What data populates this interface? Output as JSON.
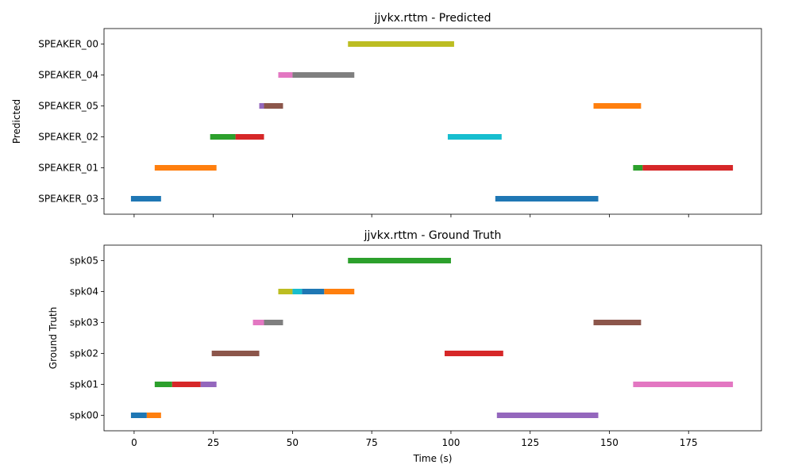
{
  "chart_data": [
    {
      "type": "timeline",
      "title": "jjvkx.rttm - Predicted",
      "ylabel": "Predicted",
      "xlabel": "",
      "xlim": [
        -9.5,
        198
      ],
      "xticks": [
        0,
        25,
        50,
        75,
        100,
        125,
        150,
        175
      ],
      "show_xtick_labels": false,
      "grid": false,
      "categories": [
        "SPEAKER_03",
        "SPEAKER_01",
        "SPEAKER_02",
        "SPEAKER_05",
        "SPEAKER_04",
        "SPEAKER_00"
      ],
      "segments": [
        {
          "row": "SPEAKER_03",
          "start": -1,
          "end": 8.5,
          "color": "#1f77b4"
        },
        {
          "row": "SPEAKER_01",
          "start": 6.5,
          "end": 26,
          "color": "#ff7f0e"
        },
        {
          "row": "SPEAKER_02",
          "start": 24,
          "end": 32,
          "color": "#2ca02c"
        },
        {
          "row": "SPEAKER_02",
          "start": 32,
          "end": 41,
          "color": "#d62728"
        },
        {
          "row": "SPEAKER_05",
          "start": 39.5,
          "end": 41,
          "color": "#9467bd"
        },
        {
          "row": "SPEAKER_05",
          "start": 41,
          "end": 47,
          "color": "#8c564b"
        },
        {
          "row": "SPEAKER_04",
          "start": 45.5,
          "end": 50,
          "color": "#e377c2"
        },
        {
          "row": "SPEAKER_04",
          "start": 50,
          "end": 69.5,
          "color": "#7f7f7f"
        },
        {
          "row": "SPEAKER_00",
          "start": 67.5,
          "end": 101,
          "color": "#bcbd22"
        },
        {
          "row": "SPEAKER_02",
          "start": 99,
          "end": 116,
          "color": "#17becf"
        },
        {
          "row": "SPEAKER_03",
          "start": 114,
          "end": 146.5,
          "color": "#1f77b4"
        },
        {
          "row": "SPEAKER_05",
          "start": 145,
          "end": 160,
          "color": "#ff7f0e"
        },
        {
          "row": "SPEAKER_01",
          "start": 157.5,
          "end": 160.5,
          "color": "#2ca02c"
        },
        {
          "row": "SPEAKER_01",
          "start": 160.5,
          "end": 189,
          "color": "#d62728"
        }
      ]
    },
    {
      "type": "timeline",
      "title": "jjvkx.rttm - Ground Truth",
      "ylabel": "Ground Truth",
      "xlabel": "Time (s)",
      "xlim": [
        -9.5,
        198
      ],
      "xticks": [
        0,
        25,
        50,
        75,
        100,
        125,
        150,
        175
      ],
      "show_xtick_labels": true,
      "grid": false,
      "categories": [
        "spk00",
        "spk01",
        "spk02",
        "spk03",
        "spk04",
        "spk05"
      ],
      "segments": [
        {
          "row": "spk00",
          "start": -1,
          "end": 4,
          "color": "#1f77b4"
        },
        {
          "row": "spk00",
          "start": 4,
          "end": 8.5,
          "color": "#ff7f0e"
        },
        {
          "row": "spk01",
          "start": 6.5,
          "end": 12,
          "color": "#2ca02c"
        },
        {
          "row": "spk01",
          "start": 12,
          "end": 21,
          "color": "#d62728"
        },
        {
          "row": "spk01",
          "start": 21,
          "end": 26,
          "color": "#9467bd"
        },
        {
          "row": "spk02",
          "start": 24.5,
          "end": 39.5,
          "color": "#8c564b"
        },
        {
          "row": "spk03",
          "start": 37.5,
          "end": 41,
          "color": "#e377c2"
        },
        {
          "row": "spk03",
          "start": 41,
          "end": 47,
          "color": "#7f7f7f"
        },
        {
          "row": "spk04",
          "start": 45.5,
          "end": 50,
          "color": "#bcbd22"
        },
        {
          "row": "spk04",
          "start": 50,
          "end": 53,
          "color": "#17becf"
        },
        {
          "row": "spk04",
          "start": 53,
          "end": 60,
          "color": "#1f77b4"
        },
        {
          "row": "spk04",
          "start": 60,
          "end": 69.5,
          "color": "#ff7f0e"
        },
        {
          "row": "spk05",
          "start": 67.5,
          "end": 100,
          "color": "#2ca02c"
        },
        {
          "row": "spk02",
          "start": 98,
          "end": 116.5,
          "color": "#d62728"
        },
        {
          "row": "spk00",
          "start": 114.5,
          "end": 146.5,
          "color": "#9467bd"
        },
        {
          "row": "spk03",
          "start": 145,
          "end": 160,
          "color": "#8c564b"
        },
        {
          "row": "spk01",
          "start": 157.5,
          "end": 189,
          "color": "#e377c2"
        }
      ]
    }
  ]
}
